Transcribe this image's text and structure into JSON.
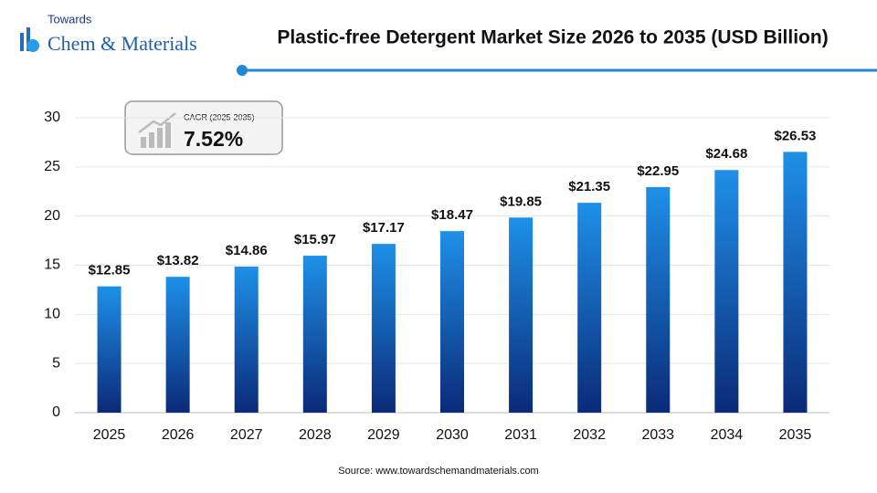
{
  "logo": {
    "line1": "Towards",
    "line2": "Chem & Materials"
  },
  "cagr": {
    "label": "CAGR (2025-2035)",
    "value": "7.52%"
  },
  "source": "Source: www.towardschemandmaterials.com",
  "chart_data": {
    "type": "bar",
    "title": "Plastic-free Detergent Market Size 2026 to 2035 (USD Billion)",
    "categories": [
      "2025",
      "2026",
      "2027",
      "2028",
      "2029",
      "2030",
      "2031",
      "2032",
      "2033",
      "2034",
      "2035"
    ],
    "values": [
      12.85,
      13.82,
      14.86,
      15.97,
      17.17,
      18.47,
      19.85,
      21.35,
      22.95,
      24.68,
      26.53
    ],
    "value_labels": [
      "$12.85",
      "$13.82",
      "$14.86",
      "$15.97",
      "$17.17",
      "$18.47",
      "$19.85",
      "$21.35",
      "$22.95",
      "$24.68",
      "$26.53"
    ],
    "color": "#1e90e8",
    "ylim": [
      0,
      30
    ],
    "yticks": [
      0,
      5,
      10,
      15,
      20,
      25,
      30
    ],
    "grid": true
  }
}
